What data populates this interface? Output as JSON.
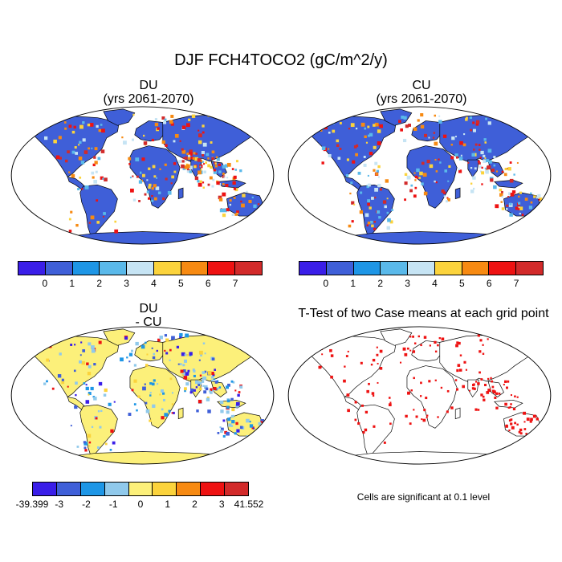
{
  "title": "DJF FCH4TOCO2 (gC/m^2/y)",
  "panels": {
    "du": {
      "title": "DU",
      "subtitle": "(yrs 2061-2070)"
    },
    "cu": {
      "title": "CU",
      "subtitle": "(yrs 2061-2070)"
    },
    "diff": {
      "title": "DU",
      "subtitle": "- CU"
    },
    "ttest": {
      "title": "T-Test of two Case means at each grid point"
    }
  },
  "colorbar_main": {
    "colors": [
      "#3a1ee8",
      "#3f5fd8",
      "#1e96e6",
      "#5ab9ea",
      "#c6e4f4",
      "#fbd33c",
      "#f78a12",
      "#ee1212",
      "#d22a2a"
    ],
    "labels": [
      "0",
      "1",
      "2",
      "3",
      "4",
      "5",
      "6",
      "7"
    ]
  },
  "colorbar_diff": {
    "colors": [
      "#3a1ee8",
      "#3f5fd8",
      "#1e96e6",
      "#90c9eb",
      "#fcf07a",
      "#fbd33c",
      "#f78a12",
      "#ee1212",
      "#d22a2a"
    ],
    "labels": [
      "-39.399",
      "-3",
      "-2",
      "-1",
      "0",
      "1",
      "2",
      "3",
      "41.552"
    ]
  },
  "note": "Cells are significant at 0.1 level",
  "map_colors": {
    "abs_base": "#3f5fd8",
    "diff_base": "#fcf07a",
    "ttest_mark": "#ee1212"
  }
}
